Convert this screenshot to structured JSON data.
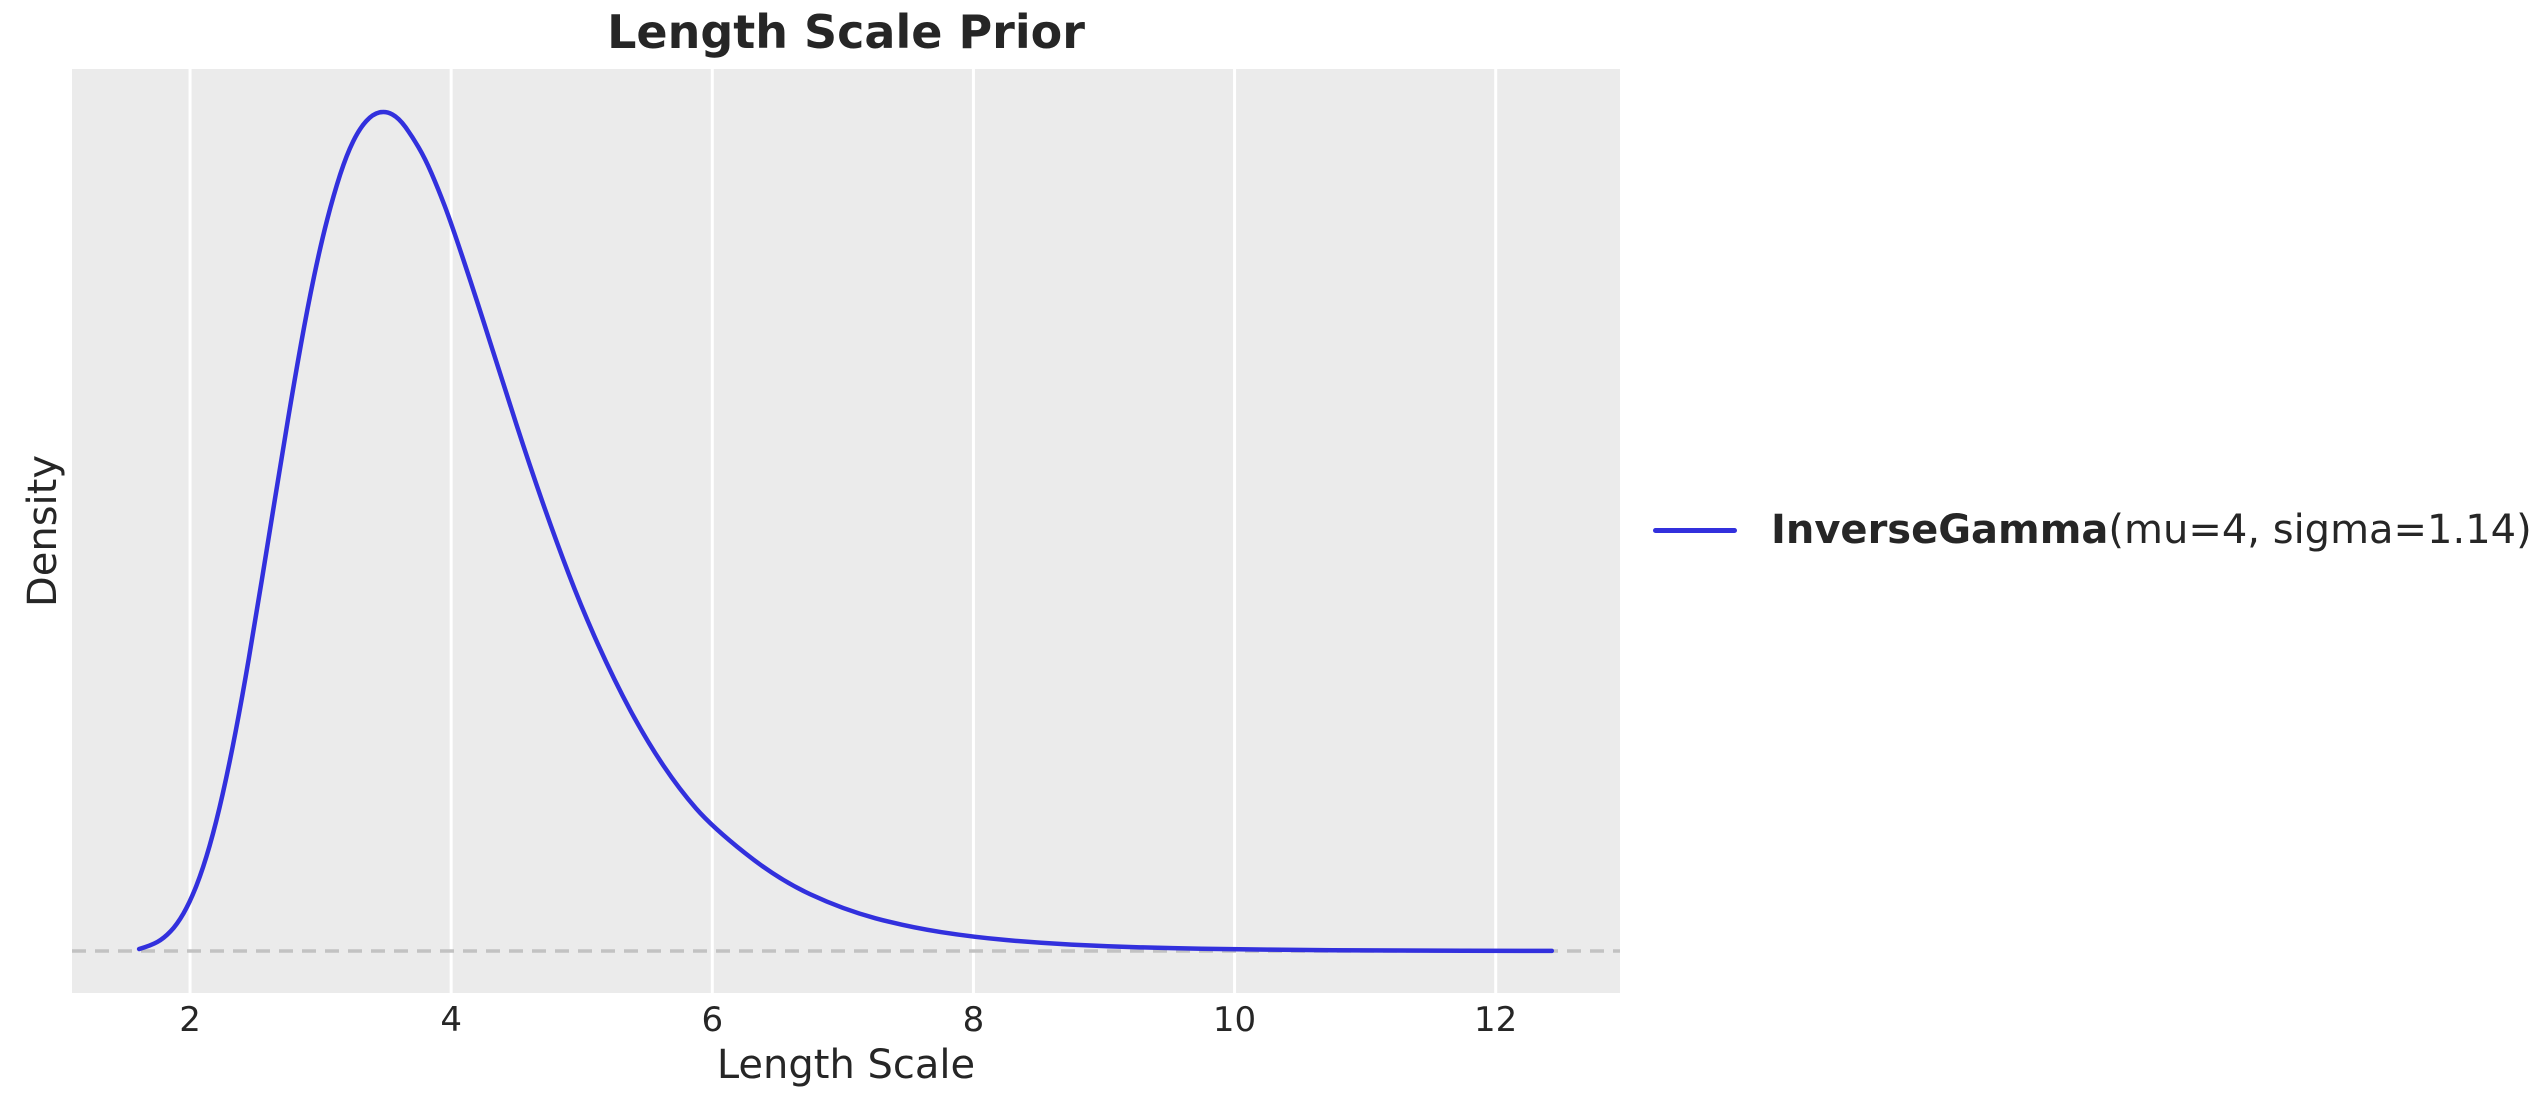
{
  "chart": {
    "title": "Length Scale Prior",
    "xlabel": "Length Scale",
    "ylabel": "Density",
    "legend": {
      "name": "InverseGamma",
      "params": "(mu=4, sigma=1.14)",
      "location": "outside-right"
    },
    "colors": {
      "curve": "#3230dd",
      "plot_background": "#ebebeb",
      "gridline": "#ffffff",
      "zero_line": "#c2c2c2",
      "text": "#262626",
      "figure_background": "#ffffff"
    }
  },
  "chart_data": {
    "type": "line",
    "title": "Length Scale Prior",
    "xlabel": "Length Scale",
    "ylabel": "Density",
    "legend_entries": [
      "InverseGamma(mu=4, sigma=1.14)"
    ],
    "legend_position": "center-right-outside",
    "distribution": {
      "family": "InverseGamma",
      "mu": 4,
      "sigma": 1.14
    },
    "xlim": [
      1.096,
      12.952
    ],
    "ylim": [
      -0.0208,
      0.4373
    ],
    "xticks": [
      2,
      4,
      6,
      8,
      10,
      12
    ],
    "xtick_labels": [
      "2",
      "4",
      "6",
      "8",
      "10",
      "12"
    ],
    "yticks": [],
    "grid": "vertical-only",
    "zero_line": {
      "y": 0,
      "style": "dashed"
    },
    "series": [
      {
        "name": "InverseGamma(mu=4, sigma=1.14)",
        "x": [
          1.61,
          1.7,
          1.8,
          1.9,
          2.0,
          2.1,
          2.2,
          2.3,
          2.4,
          2.5,
          2.6,
          2.7,
          2.8,
          2.9,
          3.0,
          3.1,
          3.2,
          3.3,
          3.4,
          3.5,
          3.6,
          3.7,
          3.8,
          3.9,
          4.0,
          4.2,
          4.4,
          4.6,
          4.8,
          5.0,
          5.25,
          5.5,
          5.75,
          6.0,
          6.5,
          7.0,
          7.5,
          8.0,
          8.5,
          9.0,
          9.5,
          10.0,
          10.5,
          11.0,
          11.5,
          12.0,
          12.43
        ],
        "y": [
          0.001,
          0.0027,
          0.0063,
          0.0131,
          0.0243,
          0.0409,
          0.0635,
          0.0922,
          0.126,
          0.164,
          0.204,
          0.244,
          0.283,
          0.319,
          0.35,
          0.375,
          0.395,
          0.408,
          0.415,
          0.4165,
          0.413,
          0.404,
          0.393,
          0.378,
          0.361,
          0.322,
          0.281,
          0.241,
          0.204,
          0.17,
          0.134,
          0.104,
          0.08,
          0.0615,
          0.0357,
          0.0206,
          0.0119,
          0.0069,
          0.004,
          0.0024,
          0.0014,
          0.00086,
          0.00052,
          0.00032,
          0.0002,
          0.00013,
          9e-05
        ]
      }
    ]
  }
}
